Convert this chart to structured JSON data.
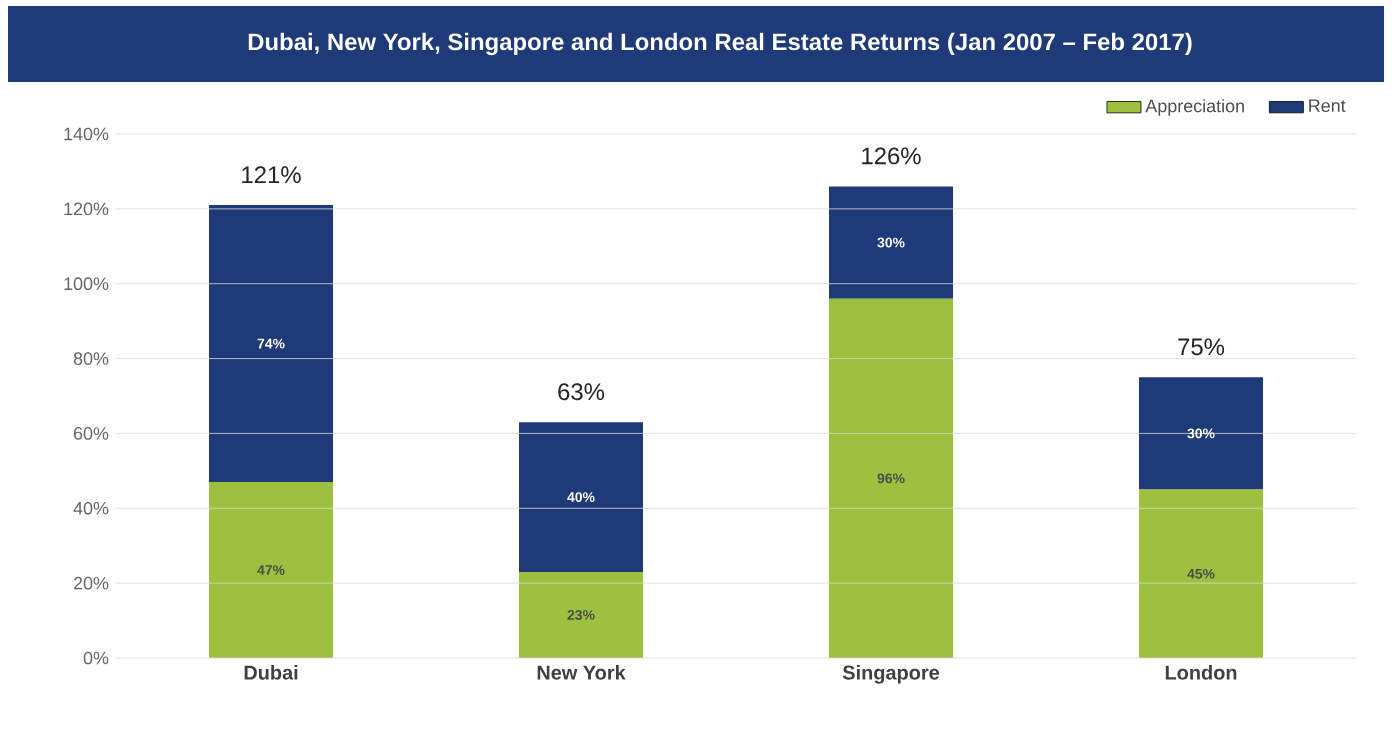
{
  "chart_data": {
    "type": "bar",
    "stacked": true,
    "title": "Dubai, New York, Singapore and London Real Estate Returns (Jan 2007 – Feb 2017)",
    "categories": [
      "Dubai",
      "New York",
      "Singapore",
      "London"
    ],
    "series": [
      {
        "name": "Appreciation",
        "color": "#9dc13f",
        "values": [
          47,
          23,
          96,
          45
        ],
        "value_labels": [
          "47%",
          "23%",
          "96%",
          "45%"
        ]
      },
      {
        "name": "Rent",
        "color": "#1f3a78",
        "values": [
          74,
          40,
          30,
          30
        ],
        "value_labels": [
          "74%",
          "40%",
          "30%",
          "30%"
        ]
      }
    ],
    "totals": [
      "121%",
      "63%",
      "126%",
      "75%"
    ],
    "ylim": [
      0,
      140
    ],
    "yticks": [
      {
        "value": 0,
        "label": "0%"
      },
      {
        "value": 20,
        "label": "20%"
      },
      {
        "value": 40,
        "label": "40%"
      },
      {
        "value": 60,
        "label": "60%"
      },
      {
        "value": 80,
        "label": "80%"
      },
      {
        "value": 100,
        "label": "100%"
      },
      {
        "value": 120,
        "label": "120%"
      },
      {
        "value": 140,
        "label": "140%"
      }
    ],
    "grid": "y",
    "legend": "top right"
  }
}
